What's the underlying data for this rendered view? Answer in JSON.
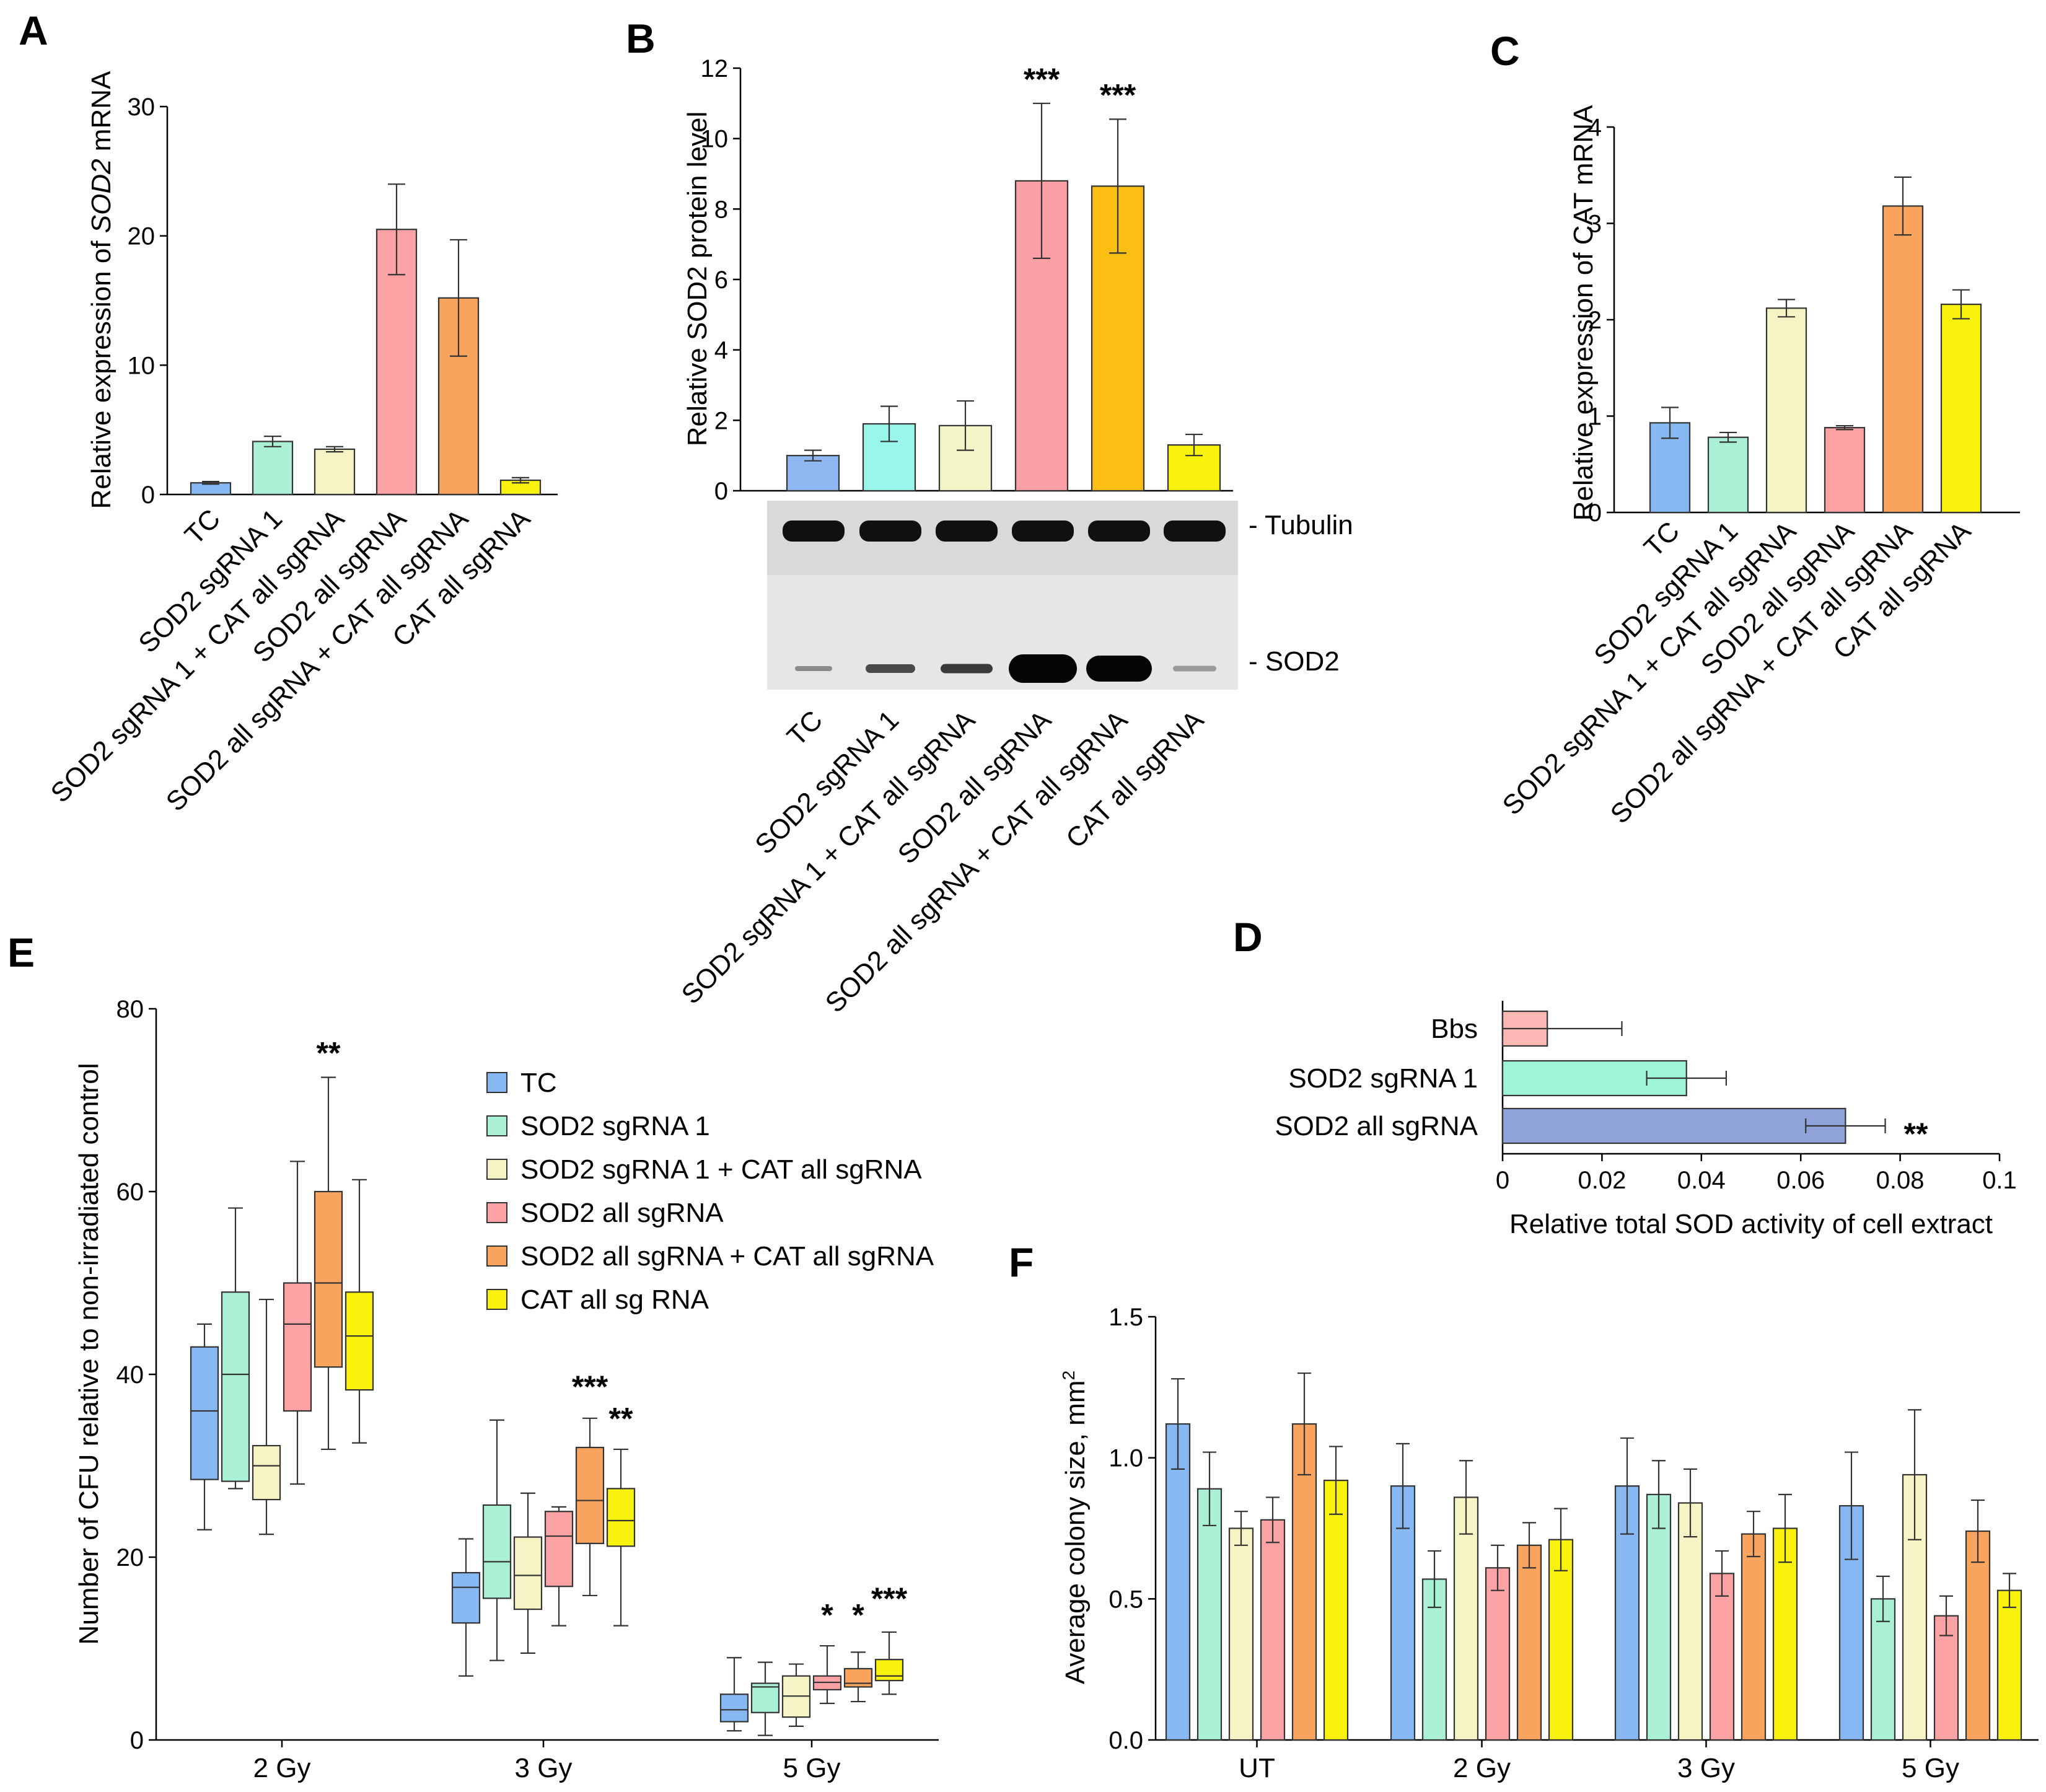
{
  "colors": {
    "tc": "#87b8f2",
    "sod2_sg1": "#a9f0d4",
    "sod2_sg1_cat": "#f6f4c4",
    "sod2_all": "#fba2a4",
    "sod2_all_cat": "#f9a45e",
    "cat_all": "#f8f20d",
    "b_tc": "#8fb8f3",
    "b_sod2_sg1": "#98f6ea",
    "b_sod2_sg1_cat": "#f3f5c9",
    "b_sod2_all": "#fb9fa6",
    "b_sod2_all_cat": "#fbbe12",
    "d_bbs": "#fbb8b4",
    "d_sg1": "#9ef4d4",
    "d_all": "#8fa3da"
  },
  "chart_data": [
    {
      "panel": "A",
      "type": "bar",
      "ylabel_prefix": "Relative expression of ",
      "ylabel_gene": "SOD2",
      "ylabel_suffix": " mRNA",
      "ylim": [
        0,
        30
      ],
      "yticks": [
        0,
        10,
        20,
        30
      ],
      "categories": [
        "TC",
        "SOD2 sgRNA 1",
        "SOD2 sgRNA 1 + CAT all sgRNA",
        "SOD2 all sgRNA",
        "SOD2 all sgRNA + CAT all sgRNA",
        "CAT all sgRNA"
      ],
      "values": [
        0.9,
        4.1,
        3.5,
        20.5,
        15.2,
        1.1
      ],
      "errors": [
        0.1,
        0.4,
        0.2,
        3.5,
        4.5,
        0.2
      ],
      "stars": [
        "",
        "",
        "",
        "",
        "",
        ""
      ]
    },
    {
      "panel": "B",
      "type": "bar",
      "ylabel": "Relative SOD2 protein level",
      "ylim": [
        0,
        12
      ],
      "yticks": [
        0,
        2,
        4,
        6,
        8,
        10,
        12
      ],
      "categories": [
        "TC",
        "SOD2 sgRNA 1",
        "SOD2 sgRNA 1 + CAT all sgRNA",
        "SOD2 all sgRNA",
        "SOD2 all sgRNA + CAT all sgRNA",
        "CAT all sgRNA"
      ],
      "values": [
        1.0,
        1.9,
        1.85,
        8.8,
        8.65,
        1.3
      ],
      "errors": [
        0.15,
        0.5,
        0.7,
        2.2,
        1.9,
        0.3
      ],
      "stars": [
        "",
        "",
        "",
        "***",
        "***",
        ""
      ],
      "blot_labels": [
        "- Tubulin",
        "- SOD2"
      ]
    },
    {
      "panel": "C",
      "type": "bar",
      "ylabel": "Relative expression of CAT mRNA",
      "ylim": [
        0,
        4
      ],
      "yticks": [
        0,
        1,
        2,
        3,
        4
      ],
      "categories": [
        "TC",
        "SOD2 sgRNA 1",
        "SOD2 sgRNA 1 + CAT all sgRNA",
        "SOD2 all sgRNA",
        "SOD2 all sgRNA + CAT all sgRNA",
        "CAT all sgRNA"
      ],
      "values": [
        0.93,
        0.78,
        2.12,
        0.88,
        3.18,
        2.16
      ],
      "errors": [
        0.16,
        0.05,
        0.09,
        0.02,
        0.3,
        0.15
      ],
      "stars": [
        "",
        "",
        "",
        "",
        "",
        ""
      ]
    },
    {
      "panel": "D",
      "type": "bar",
      "orientation": "horizontal",
      "xlabel": "Relative total SOD activity of cell extract",
      "xlim": [
        0,
        0.1
      ],
      "xticks": [
        "0",
        "0.02",
        "0.04",
        "0.06",
        "0.08",
        "0.1"
      ],
      "categories": [
        "Bbs",
        "SOD2 sgRNA 1",
        "SOD2 all sgRNA"
      ],
      "values": [
        0.009,
        0.037,
        0.069
      ],
      "errors": [
        0.015,
        0.008,
        0.008
      ],
      "stars": [
        "",
        "",
        "**"
      ]
    },
    {
      "panel": "E",
      "type": "box",
      "ylabel": "Number of CFU relative to non-irradiated control",
      "ylim": [
        0,
        80
      ],
      "yticks": [
        0,
        20,
        40,
        60,
        80
      ],
      "groups": [
        "2 Gy",
        "3 Gy",
        "5 Gy"
      ],
      "legend": [
        "TC",
        "SOD2 sgRNA 1",
        "SOD2 sgRNA 1 + CAT all sgRNA",
        "SOD2 all sgRNA",
        "SOD2 all sgRNA + CAT all sgRNA",
        "CAT all sg RNA"
      ],
      "series": [
        {
          "name": "TC",
          "boxes": [
            [
              23,
              28.5,
              36,
              43,
              45.5
            ],
            [
              7,
              12.8,
              16.7,
              18.3,
              22
            ],
            [
              1.0,
              2.0,
              3.3,
              5.0,
              9.0
            ]
          ]
        },
        {
          "name": "SOD2 sgRNA 1",
          "boxes": [
            [
              27.5,
              28.3,
              40,
              49,
              58.2
            ],
            [
              8.7,
              15.5,
              19.5,
              25.7,
              35
            ],
            [
              0.5,
              3.0,
              5.8,
              6.2,
              8.5
            ]
          ]
        },
        {
          "name": "SOD2 sgRNA 1 + CAT all sgRNA",
          "boxes": [
            [
              22.5,
              26.3,
              30,
              32.2,
              48.2
            ],
            [
              9.5,
              14.3,
              18,
              22.2,
              27
            ]
          ],
          "extra": [
            [
              1.5,
              2.5,
              4.8,
              7.0,
              8.3
            ]
          ]
        },
        {
          "name": "SOD2 all sgRNA",
          "boxes": [
            [
              28,
              36,
              45.5,
              50,
              63.3
            ],
            [
              12.5,
              16.8,
              22.3,
              25,
              25.5
            ],
            [
              4.0,
              5.5,
              6.3,
              7.0,
              10.3
            ]
          ]
        },
        {
          "name": "SOD2 all sgRNA + CAT all sgRNA",
          "boxes": [
            [
              31.8,
              40.8,
              50,
              60,
              72.5
            ],
            [
              15.8,
              21.5,
              26.2,
              32,
              35.2
            ],
            [
              4.2,
              5.8,
              6.2,
              7.8,
              9.6
            ]
          ]
        },
        {
          "name": "CAT all sg RNA",
          "boxes": [
            [
              32.5,
              38.3,
              44.2,
              49,
              61.3
            ],
            [
              12.5,
              21.2,
              24,
              27.5,
              31.8
            ],
            [
              5.0,
              6.5,
              7.0,
              8.8,
              11.8
            ]
          ]
        }
      ],
      "stars": [
        {
          "group": 0,
          "series": 4,
          "text": "**",
          "value": 74
        },
        {
          "group": 1,
          "series": 4,
          "text": "***",
          "value": 37.5
        },
        {
          "group": 1,
          "series": 5,
          "text": "**",
          "value": 34
        },
        {
          "group": 2,
          "series": 3,
          "text": "*",
          "value": 12.5
        },
        {
          "group": 2,
          "series": 4,
          "text": "*",
          "value": 12.5
        },
        {
          "group": 2,
          "series": 5,
          "text": "***",
          "value": 14.3
        }
      ]
    },
    {
      "panel": "F",
      "type": "bar",
      "ylabel_text": "Average colony size, mm",
      "ylabel_sup": "2",
      "ylim": [
        0,
        1.5
      ],
      "yticks": [
        "0.0",
        "0.5",
        "1.0",
        "1.5"
      ],
      "groups": [
        "UT",
        "2 Gy",
        "3 Gy",
        "5 Gy"
      ],
      "series": [
        {
          "name": "TC",
          "values": [
            1.12,
            0.9,
            0.9,
            0.83
          ],
          "errors": [
            0.16,
            0.15,
            0.17,
            0.19
          ]
        },
        {
          "name": "SOD2 sgRNA 1",
          "values": [
            0.89,
            0.57,
            0.87,
            0.5
          ],
          "errors": [
            0.13,
            0.1,
            0.12,
            0.08
          ]
        },
        {
          "name": "SOD2 sgRNA 1 + CAT all sgRNA",
          "values": [
            0.75,
            0.86,
            0.84,
            0.94
          ],
          "errors": [
            0.06,
            0.13,
            0.12,
            0.23
          ]
        },
        {
          "name": "SOD2 all sgRNA",
          "values": [
            0.78,
            0.61,
            0.59,
            0.44
          ],
          "errors": [
            0.08,
            0.08,
            0.08,
            0.07
          ]
        },
        {
          "name": "SOD2 all sgRNA + CAT all sgRNA",
          "values": [
            1.12,
            0.69,
            0.73,
            0.74
          ],
          "errors": [
            0.18,
            0.08,
            0.08,
            0.11
          ]
        },
        {
          "name": "CAT all sgRNA",
          "values": [
            0.92,
            0.71,
            0.75,
            0.53
          ],
          "errors": [
            0.12,
            0.11,
            0.12,
            0.06
          ]
        }
      ]
    }
  ]
}
